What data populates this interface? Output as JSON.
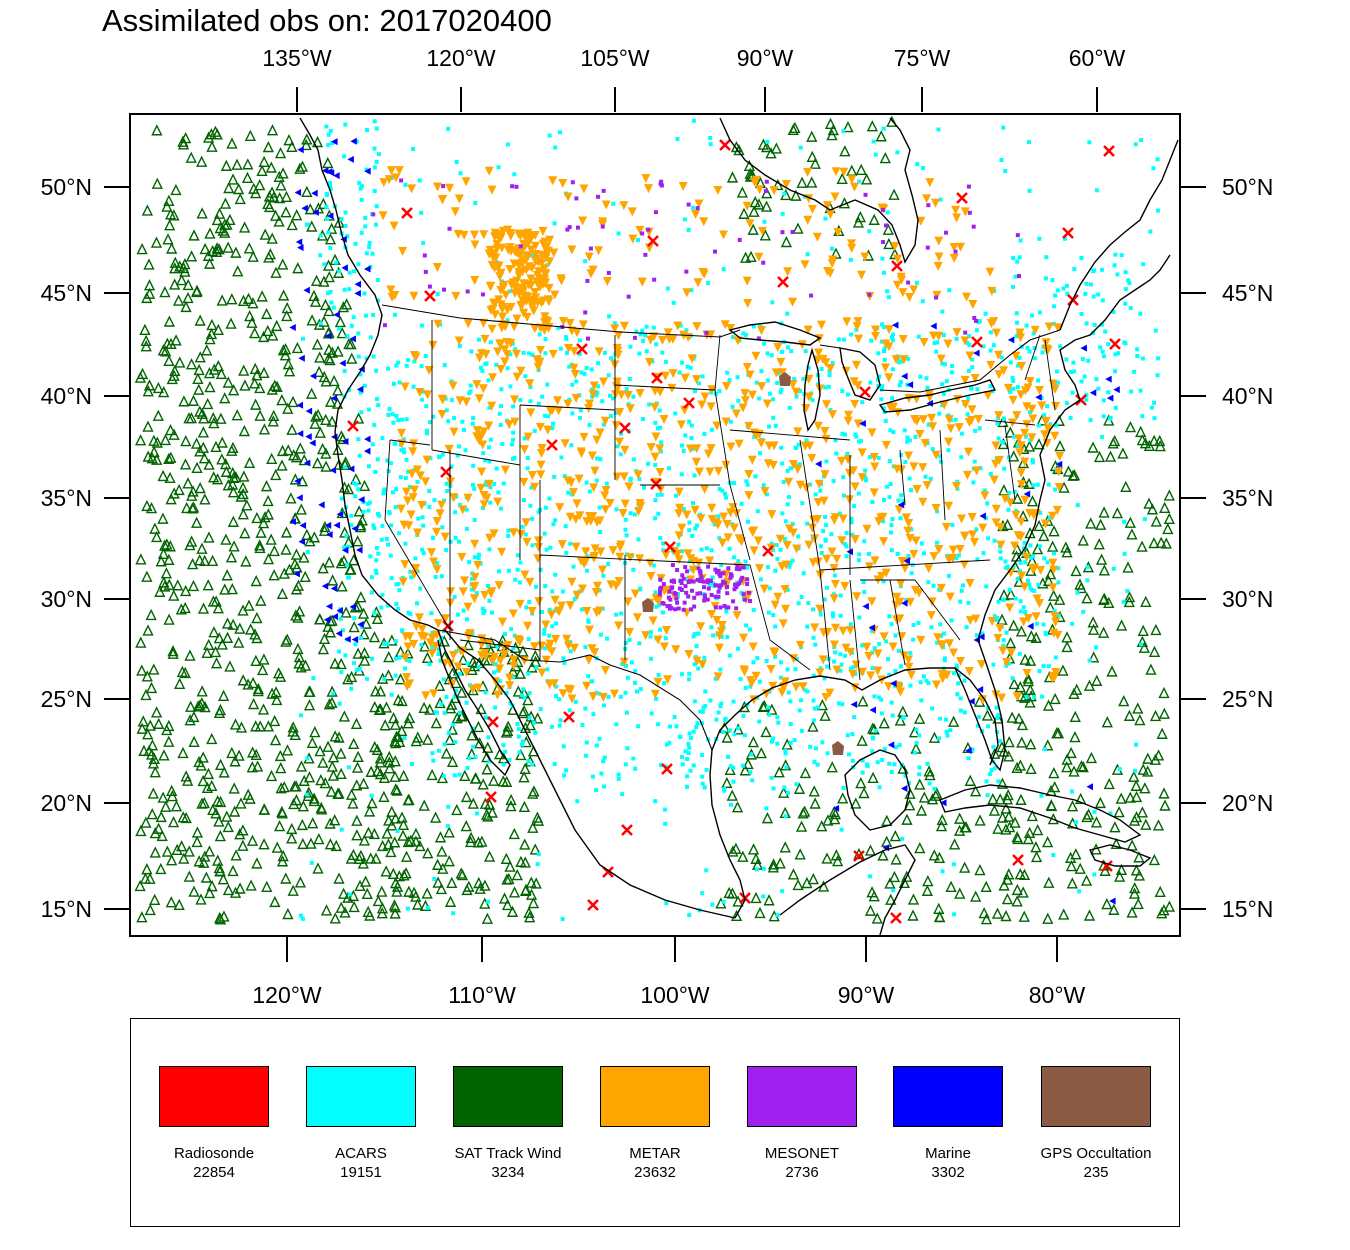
{
  "title": "Assimilated obs on: 2017020400",
  "top_axis_labels": [
    "135°W",
    "120°W",
    "105°W",
    "90°W",
    "75°W",
    "60°W"
  ],
  "bottom_axis_labels": [
    "120°W",
    "110°W",
    "100°W",
    "90°W",
    "80°W"
  ],
  "left_axis_labels": [
    "50°N",
    "45°N",
    "40°N",
    "35°N",
    "30°N",
    "25°N",
    "20°N",
    "15°N"
  ],
  "right_axis_labels": [
    "50°N",
    "45°N",
    "40°N",
    "35°N",
    "30°N",
    "25°N",
    "20°N",
    "15°N"
  ],
  "colors": {
    "radiosonde": "#ff0000",
    "acars": "#00ffff",
    "sat_track_wind": "#006400",
    "metar": "#ffa500",
    "mesonet": "#a020f0",
    "marine": "#0000ff",
    "gps": "#8b5a42"
  },
  "legend": [
    {
      "name": "Radiosonde",
      "count": "22854",
      "color": "#ff0000"
    },
    {
      "name": "ACARS",
      "count": "19151",
      "color": "#00ffff"
    },
    {
      "name": "SAT Track Wind",
      "count": "3234",
      "color": "#006400"
    },
    {
      "name": "METAR",
      "count": "23632",
      "color": "#ffa500"
    },
    {
      "name": "MESONET",
      "count": "2736",
      "color": "#a020f0"
    },
    {
      "name": "Marine",
      "count": "3302",
      "color": "#0000ff"
    },
    {
      "name": "GPS Occultation",
      "count": "235",
      "color": "#8b5a42"
    }
  ]
}
